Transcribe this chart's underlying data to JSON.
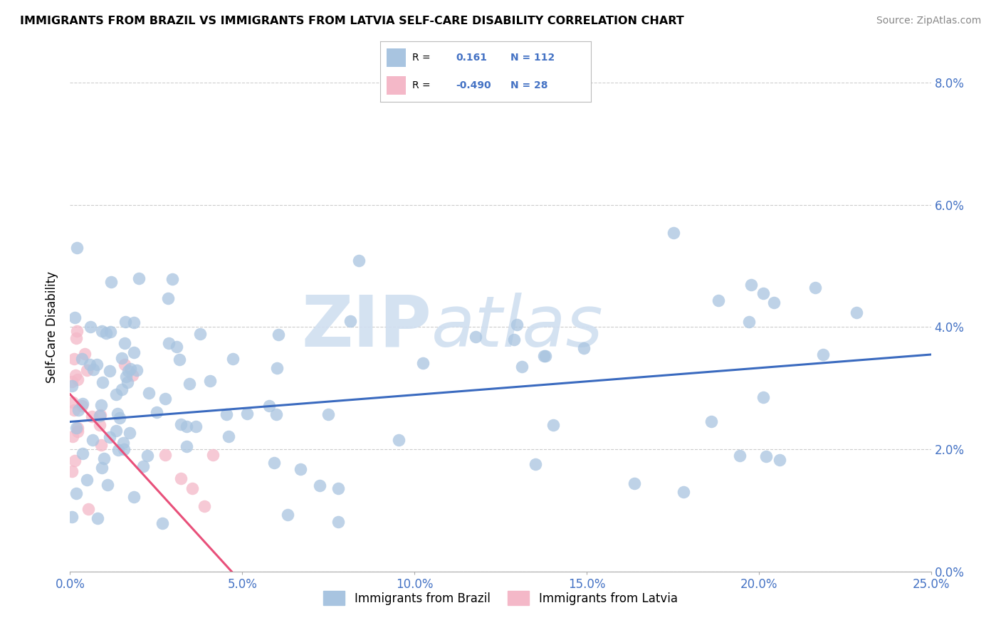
{
  "title": "IMMIGRANTS FROM BRAZIL VS IMMIGRANTS FROM LATVIA SELF-CARE DISABILITY CORRELATION CHART",
  "source": "Source: ZipAtlas.com",
  "ylabel": "Self-Care Disability",
  "xlim": [
    0.0,
    25.0
  ],
  "ylim": [
    0.0,
    8.0
  ],
  "brazil_R": 0.161,
  "brazil_N": 112,
  "latvia_R": -0.49,
  "latvia_N": 28,
  "brazil_color": "#a8c4e0",
  "latvia_color": "#f4b8c8",
  "brazil_line_color": "#3a6abf",
  "latvia_line_color": "#e8507a",
  "watermark_color": "#d0dff0",
  "tick_color": "#4472c4",
  "legend_label_brazil": "Immigrants from Brazil",
  "legend_label_latvia": "Immigrants from Latvia",
  "brazil_line_start_y": 2.45,
  "brazil_line_end_y": 3.55,
  "latvia_line_start_y": 2.9,
  "latvia_line_end_y": -0.5,
  "latvia_x_max": 5.5
}
